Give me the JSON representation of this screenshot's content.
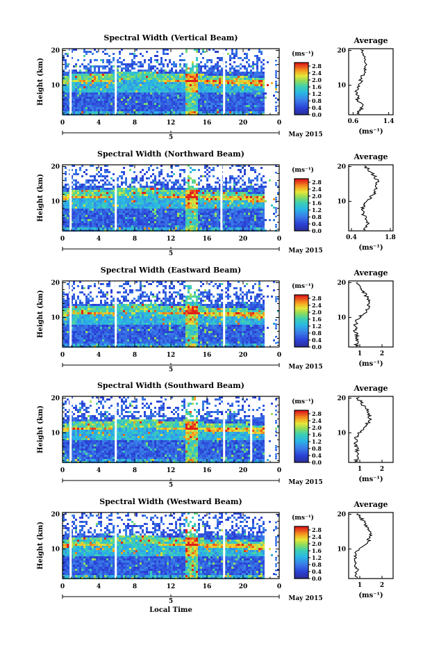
{
  "chart_data": [
    {
      "type": "heatmap",
      "title": "Spectral Width (Vertical Beam)",
      "ylabel": "Height (km)",
      "yticks": [
        "20",
        "10"
      ],
      "ylim": [
        1.5,
        20.5
      ],
      "xticks": [
        "0",
        "4",
        "8",
        "12",
        "16",
        "20",
        "0"
      ],
      "xlim": [
        0,
        24
      ],
      "date_tick": "5",
      "date_label": "May 2015",
      "colorbar": {
        "unit": "(ms⁻¹)",
        "ticks": [
          "2.8",
          "2.4",
          "2.0",
          "1.6",
          "1.2",
          "0.8",
          "0.4",
          "0.0"
        ],
        "range": [
          0,
          3.0
        ]
      },
      "gaps_hours": [
        0.9,
        5.9,
        17.9
      ],
      "profile": {
        "title": "Average",
        "xticks": [
          "0.6",
          "1.4"
        ],
        "xlim": [
          0.5,
          1.5
        ],
        "xlabel": "(ms⁻¹)",
        "heights": [
          2,
          4,
          6,
          8,
          10,
          12,
          14,
          16,
          18,
          20
        ],
        "values": [
          0.72,
          0.82,
          0.7,
          0.68,
          0.72,
          0.8,
          0.86,
          0.92,
          0.84,
          0.8
        ]
      }
    },
    {
      "type": "heatmap",
      "title": "Spectral Width (Northward Beam)",
      "ylabel": "Height (km)",
      "yticks": [
        "20",
        "10"
      ],
      "ylim": [
        1.5,
        20.5
      ],
      "xticks": [
        "0",
        "4",
        "8",
        "12",
        "16",
        "20",
        "0"
      ],
      "xlim": [
        0,
        24
      ],
      "date_tick": "5",
      "date_label": "May 2015",
      "colorbar": {
        "unit": "(ms⁻¹)",
        "ticks": [
          "2.8",
          "2.4",
          "2.0",
          "1.6",
          "1.2",
          "0.8",
          "0.4",
          "0.0"
        ],
        "range": [
          0,
          3.0
        ]
      },
      "gaps_hours": [
        0.9,
        5.9,
        17.6
      ],
      "profile": {
        "title": "Average",
        "xticks": [
          "0.4",
          "1.8"
        ],
        "xlim": [
          0.3,
          1.9
        ],
        "xlabel": "(ms⁻¹)",
        "heights": [
          2,
          4,
          6,
          8,
          10,
          12,
          14,
          16,
          18,
          20
        ],
        "values": [
          0.9,
          1.0,
          0.85,
          0.8,
          0.95,
          1.2,
          1.3,
          1.35,
          1.15,
          0.9
        ]
      }
    },
    {
      "type": "heatmap",
      "title": "Spectral Width (Eastward Beam)",
      "ylabel": "Height (km)",
      "yticks": [
        "20",
        "10"
      ],
      "ylim": [
        1.5,
        20.5
      ],
      "xticks": [
        "0",
        "4",
        "8",
        "12",
        "16",
        "20",
        "0"
      ],
      "xlim": [
        0,
        24
      ],
      "date_tick": "5",
      "date_label": "May 2015",
      "colorbar": {
        "unit": "(ms⁻¹)",
        "ticks": [
          "2.8",
          "2.4",
          "2.0",
          "1.6",
          "1.2",
          "0.8",
          "0.4",
          "0.0"
        ],
        "range": [
          0,
          3.0
        ]
      },
      "gaps_hours": [
        0.9,
        5.9,
        17.9
      ],
      "profile": {
        "title": "Average",
        "xticks": [
          "1",
          "2"
        ],
        "xlim": [
          0.5,
          2.5
        ],
        "xlabel": "(ms⁻¹)",
        "heights": [
          2,
          4,
          6,
          8,
          10,
          12,
          14,
          16,
          18,
          20
        ],
        "values": [
          0.85,
          0.9,
          0.8,
          0.8,
          0.95,
          1.35,
          1.45,
          1.3,
          1.1,
          0.9
        ]
      }
    },
    {
      "type": "heatmap",
      "title": "Spectral Width (Southward Beam)",
      "ylabel": "Height (km)",
      "yticks": [
        "20",
        "10"
      ],
      "ylim": [
        1.5,
        20.5
      ],
      "xticks": [
        "0",
        "4",
        "8",
        "12",
        "16",
        "20",
        "0"
      ],
      "xlim": [
        0,
        24
      ],
      "date_tick": "5",
      "date_label": "May 2015",
      "colorbar": {
        "unit": "(ms⁻¹)",
        "ticks": [
          "2.8",
          "2.4",
          "2.0",
          "1.6",
          "1.2",
          "0.8",
          "0.4",
          "0.0"
        ],
        "range": [
          0,
          3.0
        ]
      },
      "gaps_hours": [
        0.9,
        5.9,
        17.9,
        20.9
      ],
      "profile": {
        "title": "Average",
        "xticks": [
          "1",
          "2"
        ],
        "xlim": [
          0.5,
          2.5
        ],
        "xlabel": "(ms⁻¹)",
        "heights": [
          2,
          4,
          6,
          8,
          10,
          12,
          14,
          16,
          18,
          20
        ],
        "values": [
          0.85,
          0.9,
          0.85,
          0.8,
          0.95,
          1.3,
          1.45,
          1.4,
          1.15,
          0.9
        ]
      }
    },
    {
      "type": "heatmap",
      "title": "Spectral Width (Westward Beam)",
      "ylabel": "Height (km)",
      "yticks": [
        "20",
        "10"
      ],
      "ylim": [
        1.5,
        20.5
      ],
      "xticks": [
        "0",
        "4",
        "8",
        "12",
        "16",
        "20",
        "0"
      ],
      "xlim": [
        0,
        24
      ],
      "xlabel": "Local Time",
      "date_tick": "5",
      "date_label": "May 2015",
      "colorbar": {
        "unit": "(ms⁻¹)",
        "ticks": [
          "2.8",
          "2.4",
          "2.0",
          "1.6",
          "1.2",
          "0.8",
          "0.4",
          "0.0"
        ],
        "range": [
          0,
          3.0
        ]
      },
      "gaps_hours": [
        0.9,
        5.9,
        17.9
      ],
      "profile": {
        "title": "Average",
        "xticks": [
          "1",
          "2"
        ],
        "xlim": [
          0.5,
          2.5
        ],
        "xlabel": "(ms⁻¹)",
        "heights": [
          2,
          4,
          6,
          8,
          10,
          12,
          14,
          16,
          18,
          20
        ],
        "values": [
          0.85,
          0.9,
          0.8,
          0.8,
          0.95,
          1.35,
          1.5,
          1.35,
          1.15,
          0.95
        ]
      }
    }
  ]
}
